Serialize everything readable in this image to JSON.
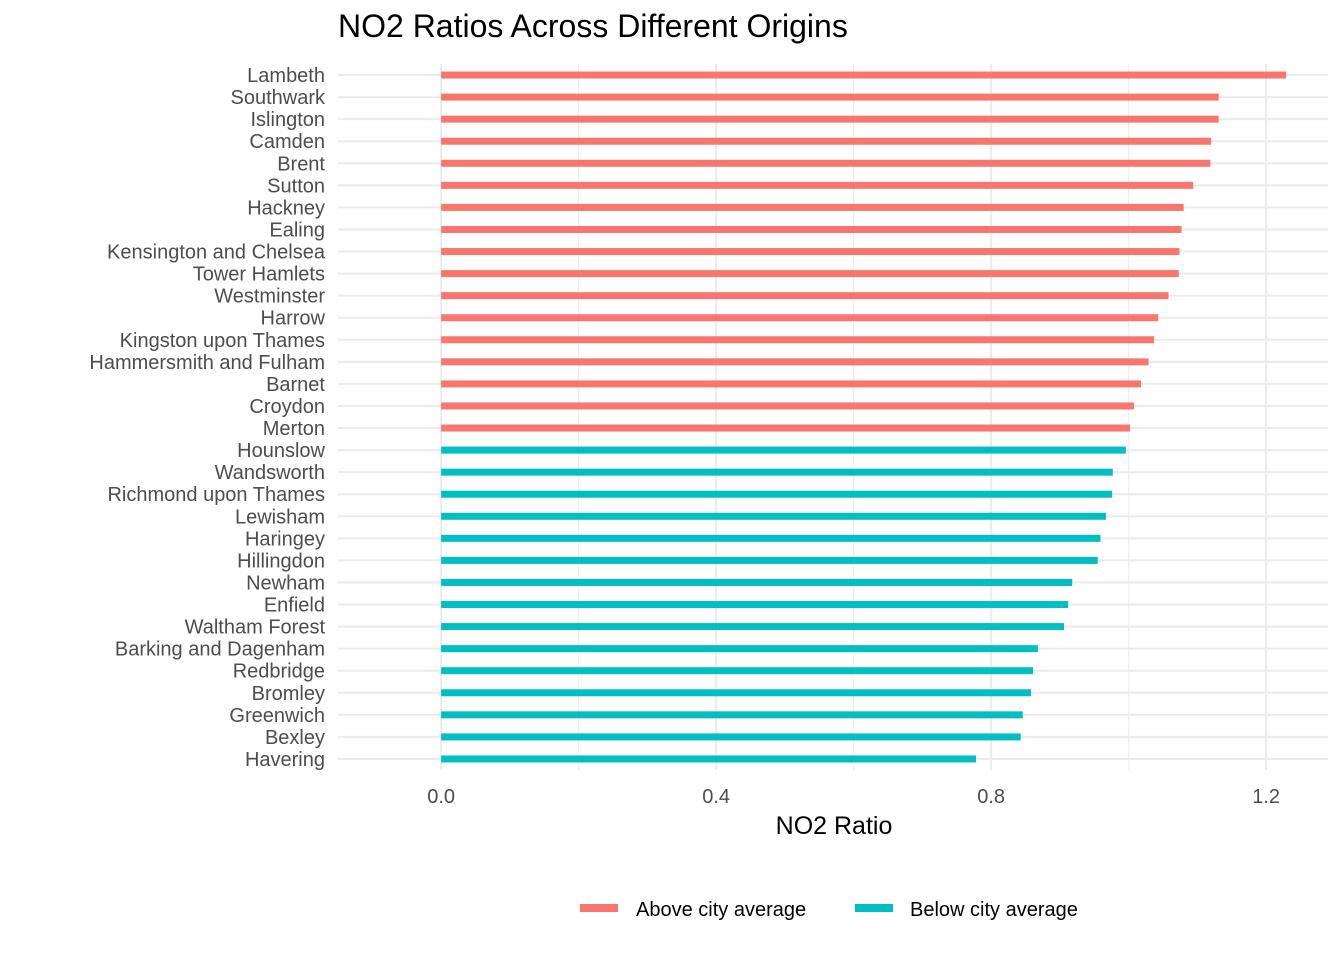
{
  "chart_data": {
    "type": "bar",
    "orientation": "horizontal",
    "title": "NO2 Ratios Across Different Origins",
    "xlabel": "NO2 Ratio",
    "ylabel": "",
    "xlim": [
      -0.15,
      1.29
    ],
    "xticks": [
      0.0,
      0.4,
      0.8,
      1.2
    ],
    "xtick_labels": [
      "0.0",
      "0.4",
      "0.8",
      "1.2"
    ],
    "grid": true,
    "legend_position": "bottom",
    "series": [
      {
        "name": "Above city average",
        "color": "#F8766D"
      },
      {
        "name": "Below city average",
        "color": "#00BFC4"
      }
    ],
    "categories": [
      "Lambeth",
      "Southwark",
      "Islington",
      "Camden",
      "Brent",
      "Sutton",
      "Hackney",
      "Ealing",
      "Kensington and Chelsea",
      "Tower Hamlets",
      "Westminster",
      "Harrow",
      "Kingston upon Thames",
      "Hammersmith and Fulham",
      "Barnet",
      "Croydon",
      "Merton",
      "Hounslow",
      "Wandsworth",
      "Richmond upon Thames",
      "Lewisham",
      "Haringey",
      "Hillingdon",
      "Newham",
      "Enfield",
      "Waltham Forest",
      "Barking and Dagenham",
      "Redbridge",
      "Bromley",
      "Greenwich",
      "Bexley",
      "Havering"
    ],
    "values": [
      1.229,
      1.131,
      1.131,
      1.12,
      1.119,
      1.094,
      1.08,
      1.077,
      1.074,
      1.073,
      1.058,
      1.043,
      1.037,
      1.029,
      1.018,
      1.008,
      1.002,
      0.996,
      0.977,
      0.976,
      0.967,
      0.959,
      0.955,
      0.918,
      0.912,
      0.906,
      0.868,
      0.861,
      0.858,
      0.846,
      0.843,
      0.778
    ],
    "groups": [
      "Above city average",
      "Above city average",
      "Above city average",
      "Above city average",
      "Above city average",
      "Above city average",
      "Above city average",
      "Above city average",
      "Above city average",
      "Above city average",
      "Above city average",
      "Above city average",
      "Above city average",
      "Above city average",
      "Above city average",
      "Above city average",
      "Above city average",
      "Below city average",
      "Below city average",
      "Below city average",
      "Below city average",
      "Below city average",
      "Below city average",
      "Below city average",
      "Below city average",
      "Below city average",
      "Below city average",
      "Below city average",
      "Below city average",
      "Below city average",
      "Below city average",
      "Below city average"
    ]
  }
}
